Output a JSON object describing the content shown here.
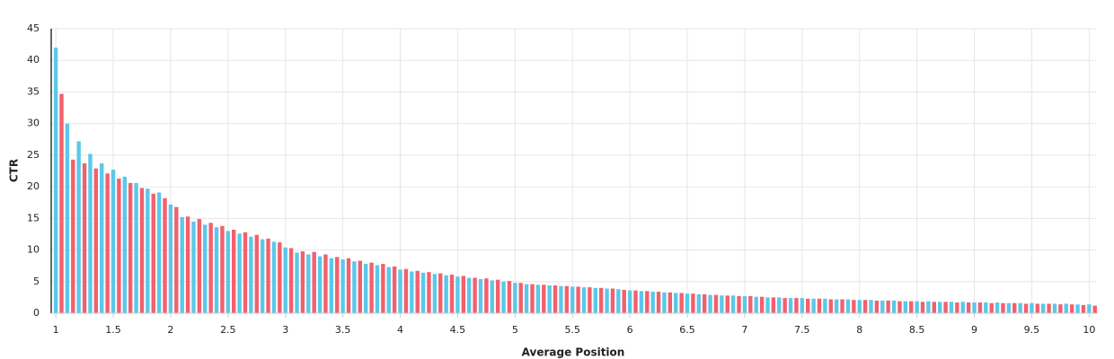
{
  "chart_data": {
    "type": "bar",
    "x_label": "Average Position",
    "y_label": "CTR",
    "xlim": [
      0.96,
      10.06
    ],
    "ylim": [
      0,
      45
    ],
    "xticks": [
      1,
      1.5,
      2,
      2.5,
      3,
      3.5,
      4,
      4.5,
      5,
      5.5,
      6,
      6.5,
      7,
      7.5,
      8,
      8.5,
      9,
      9.5,
      10
    ],
    "yticks": [
      0,
      5,
      10,
      15,
      20,
      25,
      30,
      35,
      40,
      45
    ],
    "grid": true,
    "series": [
      {
        "color": "#5bc8ea",
        "x": [
          1,
          1.1,
          1.2,
          1.3,
          1.4,
          1.5,
          1.6,
          1.7,
          1.8,
          1.9,
          2,
          2.1,
          2.2,
          2.3,
          2.4,
          2.5,
          2.6,
          2.7,
          2.8,
          2.9,
          3,
          3.1,
          3.2,
          3.3,
          3.4,
          3.5,
          3.6,
          3.7,
          3.8,
          3.9,
          4,
          4.1,
          4.2,
          4.3,
          4.4,
          4.5,
          4.6,
          4.7,
          4.8,
          4.9,
          5,
          5.1,
          5.2,
          5.3,
          5.4,
          5.5,
          5.6,
          5.7,
          5.8,
          5.9,
          6,
          6.1,
          6.2,
          6.3,
          6.4,
          6.5,
          6.6,
          6.7,
          6.8,
          6.9,
          7,
          7.1,
          7.2,
          7.3,
          7.4,
          7.5,
          7.6,
          7.7,
          7.8,
          7.9,
          8,
          8.1,
          8.2,
          8.3,
          8.4,
          8.5,
          8.6,
          8.7,
          8.8,
          8.9,
          9,
          9.1,
          9.2,
          9.3,
          9.4,
          9.5,
          9.6,
          9.7,
          9.8,
          9.9,
          10
        ],
        "values": [
          42,
          30,
          27.2,
          25.2,
          23.7,
          22.7,
          21.6,
          20.6,
          19.7,
          19.1,
          17.2,
          15.2,
          14.5,
          14.0,
          13.6,
          13.0,
          12.6,
          12.1,
          11.7,
          11.3,
          10.4,
          9.6,
          9.3,
          9.0,
          8.7,
          8.5,
          8.2,
          7.8,
          7.6,
          7.3,
          6.9,
          6.6,
          6.4,
          6.2,
          6.0,
          5.8,
          5.6,
          5.4,
          5.2,
          5.0,
          4.8,
          4.6,
          4.5,
          4.4,
          4.3,
          4.2,
          4.1,
          4.0,
          3.9,
          3.8,
          3.6,
          3.5,
          3.4,
          3.3,
          3.2,
          3.1,
          3.0,
          2.9,
          2.8,
          2.8,
          2.7,
          2.6,
          2.5,
          2.5,
          2.4,
          2.4,
          2.3,
          2.3,
          2.2,
          2.2,
          2.1,
          2.1,
          2.0,
          2.0,
          1.9,
          1.9,
          1.9,
          1.8,
          1.8,
          1.8,
          1.7,
          1.7,
          1.7,
          1.6,
          1.6,
          1.6,
          1.5,
          1.5,
          1.5,
          1.4,
          1.4
        ]
      },
      {
        "color": "#f2606e",
        "x": [
          1.05,
          1.15,
          1.25,
          1.35,
          1.45,
          1.55,
          1.65,
          1.75,
          1.85,
          1.95,
          2.05,
          2.15,
          2.25,
          2.35,
          2.45,
          2.55,
          2.65,
          2.75,
          2.85,
          2.95,
          3.05,
          3.15,
          3.25,
          3.35,
          3.45,
          3.55,
          3.65,
          3.75,
          3.85,
          3.95,
          4.05,
          4.15,
          4.25,
          4.35,
          4.45,
          4.55,
          4.65,
          4.75,
          4.85,
          4.95,
          5.05,
          5.15,
          5.25,
          5.35,
          5.45,
          5.55,
          5.65,
          5.75,
          5.85,
          5.95,
          6.05,
          6.15,
          6.25,
          6.35,
          6.45,
          6.55,
          6.65,
          6.75,
          6.85,
          6.95,
          7.05,
          7.15,
          7.25,
          7.35,
          7.45,
          7.55,
          7.65,
          7.75,
          7.85,
          7.95,
          8.05,
          8.15,
          8.25,
          8.35,
          8.45,
          8.55,
          8.65,
          8.75,
          8.85,
          8.95,
          9.05,
          9.15,
          9.25,
          9.35,
          9.45,
          9.55,
          9.65,
          9.75,
          9.85,
          9.95,
          10.05
        ],
        "values": [
          34.7,
          24.3,
          23.7,
          22.9,
          22.1,
          21.3,
          20.6,
          19.8,
          18.9,
          18.2,
          16.8,
          15.3,
          14.9,
          14.3,
          13.8,
          13.2,
          12.8,
          12.4,
          11.8,
          11.2,
          10.3,
          9.8,
          9.7,
          9.3,
          8.9,
          8.7,
          8.3,
          8.0,
          7.8,
          7.4,
          7.0,
          6.7,
          6.5,
          6.3,
          6.1,
          5.9,
          5.6,
          5.5,
          5.3,
          5.1,
          4.8,
          4.6,
          4.5,
          4.4,
          4.3,
          4.2,
          4.1,
          4.0,
          3.9,
          3.7,
          3.6,
          3.5,
          3.4,
          3.3,
          3.2,
          3.1,
          3.0,
          2.9,
          2.8,
          2.7,
          2.7,
          2.6,
          2.5,
          2.4,
          2.4,
          2.3,
          2.3,
          2.2,
          2.2,
          2.1,
          2.1,
          2.0,
          2.0,
          1.9,
          1.9,
          1.8,
          1.8,
          1.8,
          1.7,
          1.7,
          1.7,
          1.6,
          1.6,
          1.6,
          1.5,
          1.5,
          1.5,
          1.4,
          1.4,
          1.3,
          1.2
        ]
      }
    ]
  }
}
